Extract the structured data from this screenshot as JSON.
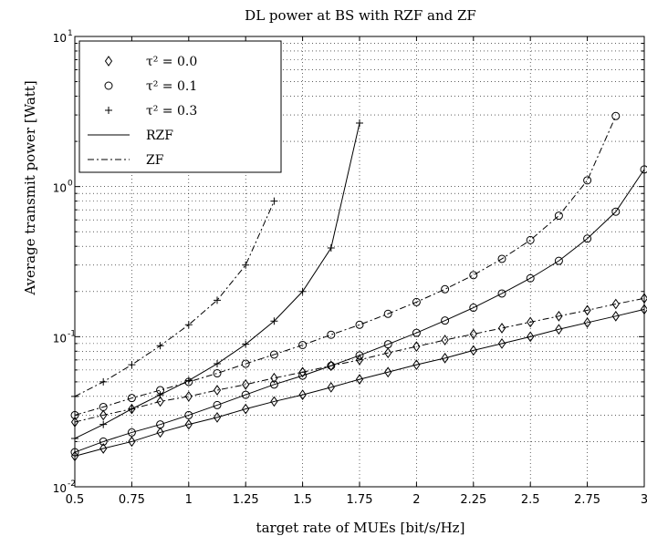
{
  "chart_data": {
    "type": "line",
    "title": "DL power at BS with RZF and ZF",
    "xlabel": "target rate of MUEs [bit/s/Hz]",
    "ylabel": "Average transmit power [Watt]",
    "xlim": [
      0.5,
      3
    ],
    "ylim": [
      0.01,
      10
    ],
    "yscale": "log",
    "grid": true,
    "legend_position": "top-left",
    "xticks": [
      0.5,
      0.75,
      1,
      1.25,
      1.5,
      1.75,
      2,
      2.25,
      2.5,
      2.75,
      3
    ],
    "xtick_labels": [
      "0.5",
      "0.75",
      "1",
      "1.25",
      "1.5",
      "1.75",
      "2",
      "2.25",
      "2.5",
      "2.75",
      "3"
    ],
    "yticks": [
      0.01,
      0.1,
      1,
      10
    ],
    "ytick_labels": [
      {
        "base": "10",
        "exp": "-2"
      },
      {
        "base": "10",
        "exp": "-1"
      },
      {
        "base": "10",
        "exp": "0"
      },
      {
        "base": "10",
        "exp": "1"
      }
    ],
    "legend": [
      {
        "label": "τ² = 0.0",
        "marker": "diamond",
        "line": "none"
      },
      {
        "label": "τ² = 0.1",
        "marker": "circle",
        "line": "none"
      },
      {
        "label": "τ² = 0.3",
        "marker": "plus",
        "line": "none"
      },
      {
        "label": "RZF",
        "marker": "none",
        "line": "solid"
      },
      {
        "label": "ZF",
        "marker": "none",
        "line": "dashdot"
      }
    ],
    "series": [
      {
        "precoder": "RZF",
        "tau2": 0.0,
        "marker": "diamond",
        "line": "solid",
        "x": [
          0.5,
          0.625,
          0.75,
          0.875,
          1,
          1.125,
          1.25,
          1.375,
          1.5,
          1.625,
          1.75,
          1.875,
          2,
          2.125,
          2.25,
          2.375,
          2.5,
          2.625,
          2.75,
          2.875,
          3
        ],
        "y": [
          0.016,
          0.018,
          0.02,
          0.023,
          0.026,
          0.029,
          0.033,
          0.037,
          0.041,
          0.046,
          0.052,
          0.058,
          0.065,
          0.072,
          0.081,
          0.09,
          0.1,
          0.112,
          0.124,
          0.137,
          0.152
        ]
      },
      {
        "precoder": "RZF",
        "tau2": 0.1,
        "marker": "circle",
        "line": "solid",
        "x": [
          0.5,
          0.625,
          0.75,
          0.875,
          1,
          1.125,
          1.25,
          1.375,
          1.5,
          1.625,
          1.75,
          1.875,
          2,
          2.125,
          2.25,
          2.375,
          2.5,
          2.625,
          2.75,
          2.875,
          3
        ],
        "y": [
          0.017,
          0.02,
          0.023,
          0.026,
          0.03,
          0.035,
          0.041,
          0.048,
          0.055,
          0.064,
          0.075,
          0.089,
          0.106,
          0.128,
          0.156,
          0.194,
          0.245,
          0.32,
          0.45,
          0.68,
          1.3
        ]
      },
      {
        "precoder": "RZF",
        "tau2": 0.3,
        "marker": "plus",
        "line": "solid",
        "x": [
          0.5,
          0.625,
          0.75,
          0.875,
          1,
          1.125,
          1.25,
          1.375,
          1.5,
          1.625,
          1.75
        ],
        "y": [
          0.021,
          0.026,
          0.033,
          0.041,
          0.051,
          0.066,
          0.089,
          0.127,
          0.2,
          0.39,
          2.65
        ]
      },
      {
        "precoder": "ZF",
        "tau2": 0.0,
        "marker": "diamond",
        "line": "dashdot",
        "x": [
          0.5,
          0.625,
          0.75,
          0.875,
          1,
          1.125,
          1.25,
          1.375,
          1.5,
          1.625,
          1.75,
          1.875,
          2,
          2.125,
          2.25,
          2.375,
          2.5,
          2.625,
          2.75,
          2.875,
          3
        ],
        "y": [
          0.027,
          0.03,
          0.033,
          0.037,
          0.04,
          0.044,
          0.048,
          0.053,
          0.058,
          0.064,
          0.07,
          0.078,
          0.086,
          0.095,
          0.104,
          0.114,
          0.125,
          0.137,
          0.15,
          0.165,
          0.18
        ]
      },
      {
        "precoder": "ZF",
        "tau2": 0.1,
        "marker": "circle",
        "line": "dashdot",
        "x": [
          0.5,
          0.625,
          0.75,
          0.875,
          1,
          1.125,
          1.25,
          1.375,
          1.5,
          1.625,
          1.75,
          1.875,
          2,
          2.125,
          2.25,
          2.375,
          2.5,
          2.625,
          2.75,
          2.875
        ],
        "y": [
          0.03,
          0.034,
          0.039,
          0.044,
          0.05,
          0.057,
          0.066,
          0.076,
          0.088,
          0.103,
          0.12,
          0.142,
          0.17,
          0.207,
          0.257,
          0.33,
          0.44,
          0.64,
          1.1,
          2.95
        ]
      },
      {
        "precoder": "ZF",
        "tau2": 0.3,
        "marker": "plus",
        "line": "dashdot",
        "x": [
          0.5,
          0.625,
          0.75,
          0.875,
          1,
          1.125,
          1.25,
          1.375
        ],
        "y": [
          0.04,
          0.05,
          0.065,
          0.087,
          0.12,
          0.175,
          0.3,
          0.8
        ]
      }
    ]
  }
}
